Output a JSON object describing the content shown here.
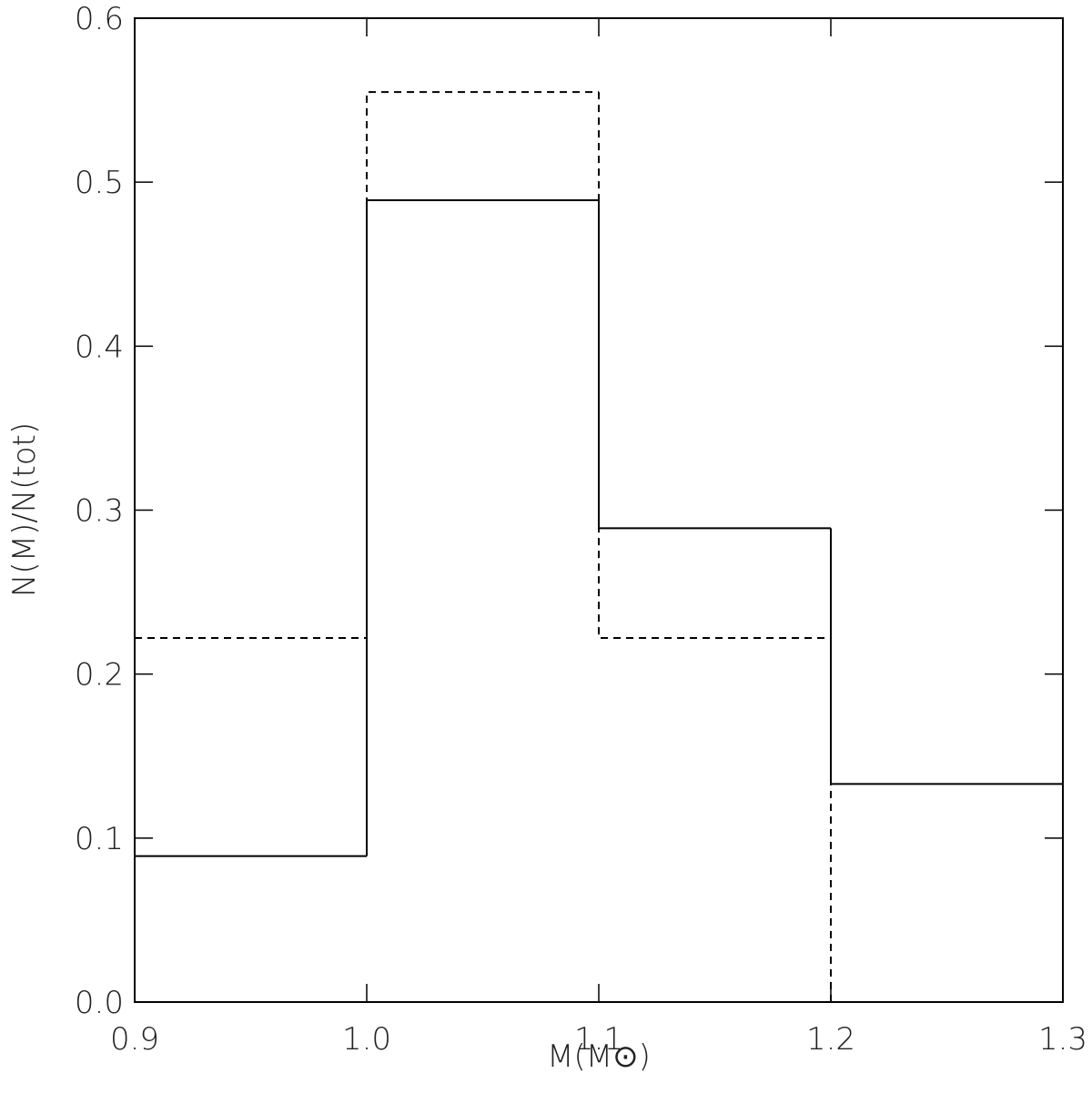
{
  "chart_data": {
    "type": "histogram",
    "x_label": "M(M⊙)",
    "y_label": "N(M)/N(tot)",
    "bins": [
      0.9,
      1.0,
      1.1,
      1.2,
      1.3
    ],
    "series": [
      {
        "color": "#000000",
        "dash": "solid",
        "values": [
          0.089,
          0.489,
          0.289,
          0.133
        ]
      },
      {
        "color": "#000000",
        "dash": "dashed",
        "values": [
          0.222,
          0.555,
          0.222,
          0.0
        ]
      }
    ],
    "xlim": [
      0.9,
      1.3
    ],
    "xticks": [
      0.9,
      {
        "value": 1.0,
        "label": "1.0"
      },
      1.1,
      1.2,
      1.3
    ],
    "ylim": [
      0,
      0.6
    ],
    "yticks": [
      {
        "value": 0,
        "label": "0.0"
      },
      0.1,
      0.2,
      0.3,
      0.4,
      0.5,
      0.6
    ]
  }
}
